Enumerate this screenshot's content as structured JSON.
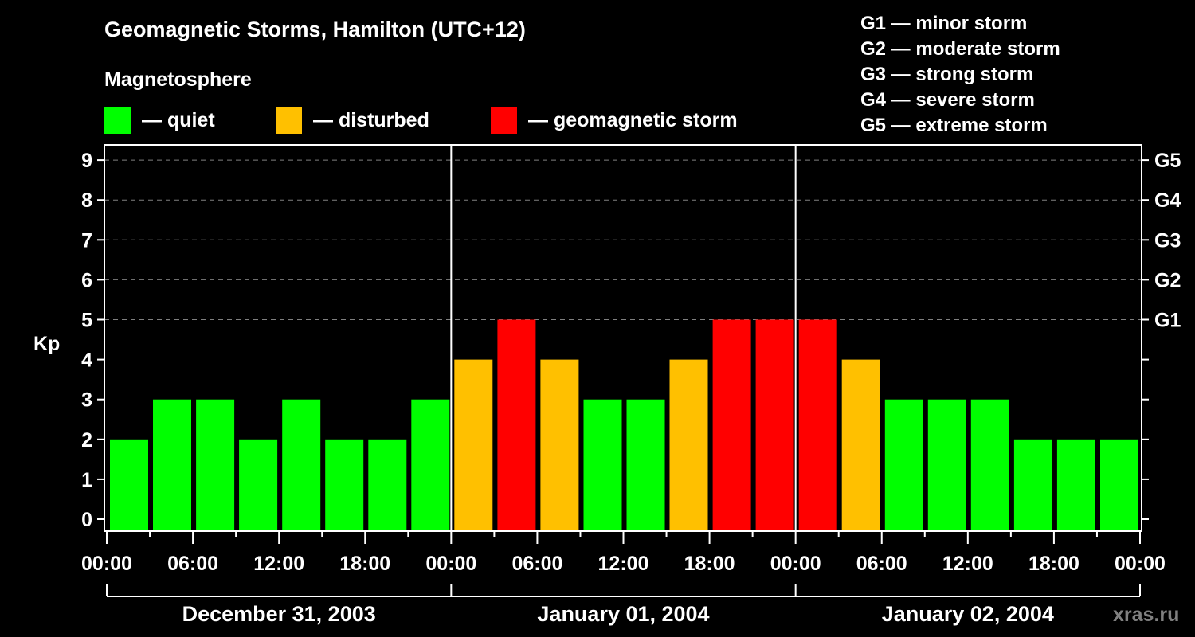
{
  "header": {
    "title": "Geomagnetic Storms, Hamilton (UTC+12)",
    "subtitle": "Magnetosphere"
  },
  "legend": [
    {
      "label": "— quiet",
      "color": "#00ff00"
    },
    {
      "label": "— disturbed",
      "color": "#ffc000"
    },
    {
      "label": "— geomagnetic storm",
      "color": "#ff0000"
    }
  ],
  "storm_levels": [
    "G1 — minor storm",
    "G2 — moderate storm",
    "G3 — strong storm",
    "G4 — severe storm",
    "G5 — extreme storm"
  ],
  "watermark": "xras.ru",
  "chart_data": {
    "type": "bar",
    "title": "Geomagnetic Storms, Hamilton (UTC+12)",
    "subtitle": "Magnetosphere",
    "xlabel": "",
    "ylabel": "Kp",
    "ylim": [
      0,
      9
    ],
    "yticks": [
      0,
      1,
      2,
      3,
      4,
      5,
      6,
      7,
      8,
      9
    ],
    "right_axis_ticks": [
      {
        "value": 5,
        "label": "G1"
      },
      {
        "value": 6,
        "label": "G2"
      },
      {
        "value": 7,
        "label": "G3"
      },
      {
        "value": 8,
        "label": "G4"
      },
      {
        "value": 9,
        "label": "G5"
      }
    ],
    "grid": "dashed horizontal at Kp 5-9",
    "x_tick_labels": [
      "00:00",
      "06:00",
      "12:00",
      "18:00",
      "00:00",
      "06:00",
      "12:00",
      "18:00",
      "00:00",
      "06:00",
      "12:00",
      "18:00",
      "00:00"
    ],
    "days": [
      "December 31, 2003",
      "January 01, 2004",
      "January 02, 2004"
    ],
    "interval_hours": 3,
    "categories": [
      "Dec31 00-03",
      "Dec31 03-06",
      "Dec31 06-09",
      "Dec31 09-12",
      "Dec31 12-15",
      "Dec31 15-18",
      "Dec31 18-21",
      "Dec31 21-24",
      "Jan01 00-03",
      "Jan01 03-06",
      "Jan01 06-09",
      "Jan01 09-12",
      "Jan01 12-15",
      "Jan01 15-18",
      "Jan01 18-21",
      "Jan01 21-24",
      "Jan02 00-03",
      "Jan02 03-06",
      "Jan02 06-09",
      "Jan02 09-12",
      "Jan02 12-15",
      "Jan02 15-18",
      "Jan02 18-21",
      "Jan02 21-24"
    ],
    "values": [
      2,
      3,
      3,
      2,
      3,
      2,
      2,
      3,
      4,
      5,
      4,
      3,
      3,
      4,
      5,
      5,
      5,
      4,
      3,
      3,
      3,
      2,
      2,
      2
    ],
    "color_rule": {
      "quiet": "Kp < 4",
      "disturbed": "Kp = 4",
      "storm": "Kp >= 5"
    },
    "colors": {
      "quiet": "#00ff00",
      "disturbed": "#ffc000",
      "storm": "#ff0000"
    },
    "legend": [
      "quiet",
      "disturbed",
      "geomagnetic storm"
    ],
    "legend_position": "top"
  }
}
